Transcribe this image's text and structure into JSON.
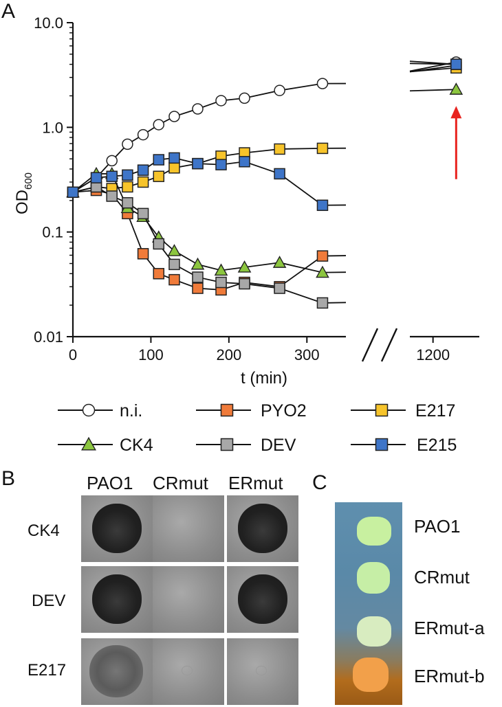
{
  "panel_letters": {
    "a": "A",
    "b": "B",
    "c": "C"
  },
  "chart_data": {
    "type": "line",
    "title": "",
    "xlabel": "t (min)",
    "ylabel_main": "OD",
    "ylabel_sub": "600",
    "yscale": "log",
    "ylim": [
      0.01,
      10
    ],
    "xlim_main": [
      0,
      350
    ],
    "xlim_break": [
      1150,
      1300
    ],
    "y_ticks": [
      {
        "v": 10,
        "label": "10.0"
      },
      {
        "v": 1,
        "label": "1.0"
      },
      {
        "v": 0.1,
        "label": "0.1"
      },
      {
        "v": 0.01,
        "label": "0.01"
      }
    ],
    "x_ticks": [
      {
        "v": 0,
        "label": "0"
      },
      {
        "v": 100,
        "label": "100"
      },
      {
        "v": 200,
        "label": "200"
      },
      {
        "v": 300,
        "label": "300"
      }
    ],
    "x_ticks_break": [
      {
        "v": 1200,
        "label": "1200"
      }
    ],
    "legend_placement": "bottom",
    "series": [
      {
        "name": "n.i.",
        "marker": "circle",
        "color": "#ffffff",
        "x": [
          0,
          30,
          50,
          70,
          90,
          110,
          130,
          160,
          190,
          220,
          265,
          320,
          1250
        ],
        "y": [
          0.24,
          0.33,
          0.48,
          0.69,
          0.85,
          1.06,
          1.27,
          1.5,
          1.8,
          1.9,
          2.25,
          2.62,
          4.2
        ]
      },
      {
        "name": "PYO2",
        "marker": "square",
        "color": "#f07b3a",
        "x": [
          0,
          30,
          50,
          70,
          90,
          110,
          130,
          160,
          190,
          220,
          265,
          320,
          1250
        ],
        "y": [
          0.24,
          0.25,
          0.23,
          0.15,
          0.062,
          0.04,
          0.035,
          0.029,
          0.028,
          0.033,
          0.03,
          0.059,
          3.9
        ]
      },
      {
        "name": "E217",
        "marker": "square",
        "color": "#f7c42b",
        "x": [
          0,
          30,
          50,
          70,
          90,
          110,
          130,
          160,
          190,
          220,
          265,
          320,
          1250
        ],
        "y": [
          0.24,
          0.27,
          0.26,
          0.27,
          0.3,
          0.34,
          0.41,
          0.45,
          0.53,
          0.57,
          0.62,
          0.63,
          3.7
        ]
      },
      {
        "name": "CK4",
        "marker": "triangle",
        "color": "#8cc63f",
        "x": [
          0,
          30,
          50,
          70,
          90,
          110,
          130,
          160,
          190,
          220,
          265,
          320,
          1250
        ],
        "y": [
          0.24,
          0.36,
          0.36,
          0.17,
          0.14,
          0.089,
          0.066,
          0.049,
          0.043,
          0.046,
          0.051,
          0.041,
          2.3
        ]
      },
      {
        "name": "DEV",
        "marker": "square",
        "color": "#a8a8a8",
        "x": [
          0,
          30,
          50,
          70,
          90,
          110,
          130,
          160,
          190,
          220,
          265,
          320,
          1250
        ],
        "y": [
          0.24,
          0.27,
          0.22,
          0.19,
          0.15,
          0.077,
          0.049,
          0.037,
          0.033,
          0.032,
          0.029,
          0.021,
          4.0
        ]
      },
      {
        "name": "E215",
        "marker": "square",
        "color": "#3e75c8",
        "x": [
          0,
          30,
          50,
          70,
          90,
          110,
          130,
          160,
          190,
          220,
          265,
          320,
          1250
        ],
        "y": [
          0.24,
          0.33,
          0.34,
          0.35,
          0.39,
          0.49,
          0.51,
          0.45,
          0.44,
          0.47,
          0.36,
          0.18,
          4.0
        ]
      }
    ],
    "arrow": {
      "x": 1250,
      "y_from": 0.32,
      "y_to": 1.6,
      "color": "#e8231f"
    },
    "break_symbol": "//"
  },
  "panel_b": {
    "columns": [
      "PAO1",
      "CRmut",
      "ERmut"
    ],
    "rows": [
      {
        "label": "CK4",
        "plaques": [
          "dark",
          "none",
          "dark"
        ]
      },
      {
        "label": "DEV",
        "plaques": [
          "dark",
          "none",
          "dark"
        ]
      },
      {
        "label": "E217",
        "plaques": [
          "faint",
          "ghost",
          "ghost"
        ]
      }
    ]
  },
  "panel_c": {
    "labels": [
      "PAO1",
      "CRmut",
      "ERmut-a",
      "ERmut-b"
    ],
    "colony_colors": [
      "#c8f0a0",
      "#c6eea6",
      "#d8ecc0",
      "#f2a04a"
    ]
  }
}
